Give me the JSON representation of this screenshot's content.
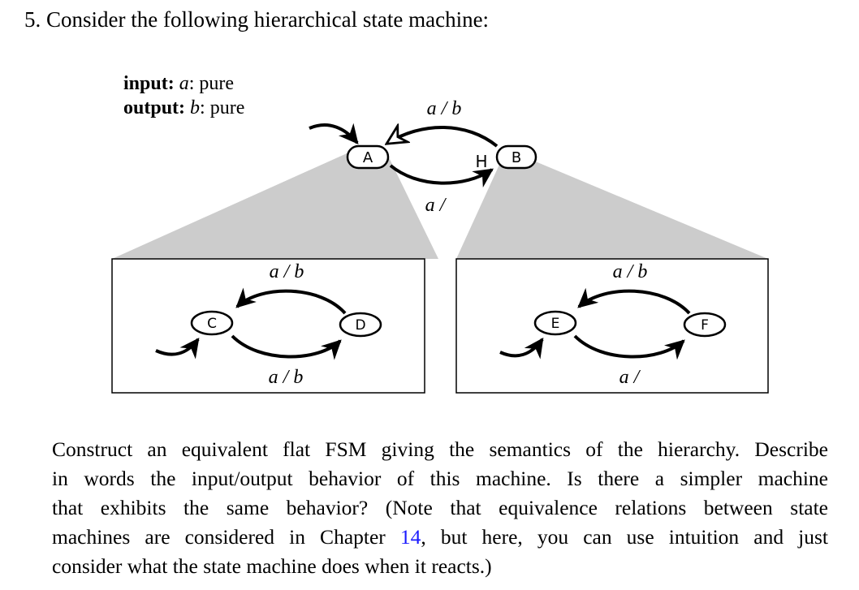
{
  "problem": {
    "number": "5.",
    "title": "Consider the following hierarchical state machine:"
  },
  "declarations": {
    "input": {
      "keyword": "input:",
      "signal": "a",
      "type": ": pure"
    },
    "output": {
      "keyword": "output:",
      "signal": "b",
      "type": ": pure"
    }
  },
  "diagram": {
    "top": {
      "states": [
        "A",
        "B"
      ],
      "history_marker": "H",
      "transitions": [
        {
          "from": "B",
          "to": "A",
          "label": "a / b"
        },
        {
          "from": "A",
          "to": "B",
          "label": "a /"
        }
      ]
    },
    "refinement_A": {
      "states": [
        "C",
        "D"
      ],
      "transitions": [
        {
          "from": "D",
          "to": "C",
          "label": "a / b"
        },
        {
          "from": "C",
          "to": "D",
          "label": "a / b"
        }
      ]
    },
    "refinement_B": {
      "states": [
        "E",
        "F"
      ],
      "transitions": [
        {
          "from": "F",
          "to": "E",
          "label": "a / b"
        },
        {
          "from": "E",
          "to": "F",
          "label": "a /"
        }
      ]
    }
  },
  "question": {
    "line1": "Construct an equivalent flat FSM giving the semantics of the hierarchy. Describe",
    "line2": "in words the input/output behavior of this machine. Is there a simpler machine",
    "line3": "that exhibits the same behavior? (Note that equivalence relations between state",
    "line4_before": "machines are considered in Chapter",
    "line4_link": "14",
    "line4_after": ", but here, you can use intuition and just",
    "line5": "consider what the state machine does when it reacts.)"
  }
}
